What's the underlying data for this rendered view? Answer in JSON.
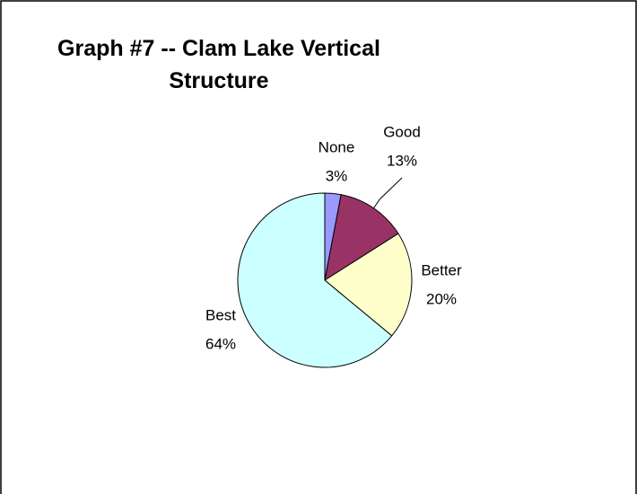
{
  "chart_data": {
    "type": "pie",
    "title": "Graph #7 -- Clam Lake Vertical Structure",
    "categories": [
      "None",
      "Good",
      "Better",
      "Best"
    ],
    "values": [
      3,
      13,
      20,
      64
    ],
    "value_labels": [
      "3%",
      "13%",
      "20%",
      "64%"
    ],
    "colors": [
      "#9999ff",
      "#993366",
      "#ffffcc",
      "#ccffff"
    ]
  }
}
